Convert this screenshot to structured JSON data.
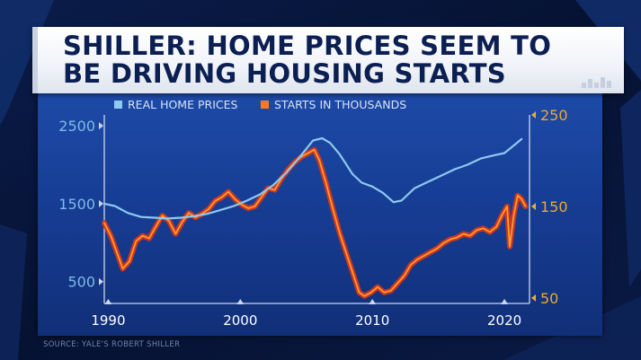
{
  "title": {
    "line1": "SHILLER: HOME PRICES SEEM TO",
    "line2": "BE DRIVING HOUSING STARTS"
  },
  "source": "SOURCE: YALE'S ROBERT SHILLER",
  "colors": {
    "background": "#07153a",
    "panel": "#1a4396",
    "title_text": "#0c1f52",
    "prices_line": "#8ec9f0",
    "starts_line": "#ff9a2e",
    "starts_shadow": "#d4371a",
    "left_axis_text": "#7dbbe6",
    "right_axis_text": "#f0a830",
    "bottom_axis_text": "#ffffff"
  },
  "chart_data": {
    "type": "line",
    "legend": {
      "placement": "top-center",
      "entries": [
        "REAL HOME PRICES",
        "STARTS IN THOUSANDS"
      ]
    },
    "x_axis": {
      "ticks": [
        1990,
        2000,
        2010,
        2020
      ],
      "range": [
        1989.7,
        2021.9
      ]
    },
    "y_left": {
      "ticks": [
        500,
        1500,
        2500
      ],
      "range": [
        220,
        2640
      ]
    },
    "y_right": {
      "ticks": [
        50,
        150,
        250
      ],
      "range": [
        44,
        250
      ]
    },
    "series": [
      {
        "name": "REAL HOME PRICES",
        "axis": "left",
        "points": [
          [
            1989.7,
            1500
          ],
          [
            1990.5,
            1470
          ],
          [
            1991.5,
            1380
          ],
          [
            1992.5,
            1330
          ],
          [
            1993.5,
            1320
          ],
          [
            1994.5,
            1310
          ],
          [
            1995.5,
            1320
          ],
          [
            1996.5,
            1340
          ],
          [
            1997.5,
            1370
          ],
          [
            1998.5,
            1420
          ],
          [
            1999.5,
            1470
          ],
          [
            2000.5,
            1540
          ],
          [
            2001.5,
            1620
          ],
          [
            2002.5,
            1740
          ],
          [
            2003.5,
            1900
          ],
          [
            2004.5,
            2100
          ],
          [
            2005.5,
            2310
          ],
          [
            2006.2,
            2340
          ],
          [
            2006.8,
            2280
          ],
          [
            2007.5,
            2140
          ],
          [
            2008.5,
            1880
          ],
          [
            2009.2,
            1770
          ],
          [
            2010.0,
            1720
          ],
          [
            2010.8,
            1640
          ],
          [
            2011.6,
            1520
          ],
          [
            2012.2,
            1540
          ],
          [
            2013.2,
            1700
          ],
          [
            2014.2,
            1780
          ],
          [
            2015.2,
            1860
          ],
          [
            2016.2,
            1940
          ],
          [
            2017.2,
            2000
          ],
          [
            2018.2,
            2080
          ],
          [
            2019.2,
            2120
          ],
          [
            2020.0,
            2150
          ],
          [
            2020.8,
            2260
          ],
          [
            2021.3,
            2330
          ]
        ]
      },
      {
        "name": "STARTS IN THOUSANDS",
        "axis": "right",
        "points": [
          [
            1989.7,
            132
          ],
          [
            1990.2,
            118
          ],
          [
            1990.7,
            98
          ],
          [
            1991.1,
            82
          ],
          [
            1991.6,
            90
          ],
          [
            1992.1,
            112
          ],
          [
            1992.6,
            118
          ],
          [
            1993.1,
            115
          ],
          [
            1993.6,
            128
          ],
          [
            1994.1,
            140
          ],
          [
            1994.6,
            134
          ],
          [
            1995.1,
            120
          ],
          [
            1995.6,
            133
          ],
          [
            1996.1,
            143
          ],
          [
            1996.6,
            138
          ],
          [
            1997.1,
            142
          ],
          [
            1997.6,
            147
          ],
          [
            1998.1,
            156
          ],
          [
            1998.6,
            160
          ],
          [
            1999.1,
            166
          ],
          [
            1999.6,
            158
          ],
          [
            2000.1,
            152
          ],
          [
            2000.6,
            148
          ],
          [
            2001.1,
            150
          ],
          [
            2001.6,
            160
          ],
          [
            2002.1,
            170
          ],
          [
            2002.6,
            168
          ],
          [
            2003.1,
            180
          ],
          [
            2003.6,
            190
          ],
          [
            2004.1,
            198
          ],
          [
            2004.6,
            204
          ],
          [
            2005.1,
            208
          ],
          [
            2005.6,
            212
          ],
          [
            2006.0,
            200
          ],
          [
            2006.5,
            175
          ],
          [
            2007.0,
            148
          ],
          [
            2007.5,
            122
          ],
          [
            2008.0,
            100
          ],
          [
            2008.5,
            78
          ],
          [
            2009.0,
            56
          ],
          [
            2009.4,
            52
          ],
          [
            2009.9,
            56
          ],
          [
            2010.4,
            62
          ],
          [
            2010.9,
            56
          ],
          [
            2011.4,
            58
          ],
          [
            2011.9,
            66
          ],
          [
            2012.4,
            74
          ],
          [
            2012.9,
            86
          ],
          [
            2013.4,
            92
          ],
          [
            2013.9,
            96
          ],
          [
            2014.4,
            100
          ],
          [
            2014.9,
            104
          ],
          [
            2015.4,
            110
          ],
          [
            2015.9,
            114
          ],
          [
            2016.4,
            116
          ],
          [
            2016.9,
            120
          ],
          [
            2017.4,
            118
          ],
          [
            2017.9,
            124
          ],
          [
            2018.4,
            126
          ],
          [
            2018.9,
            122
          ],
          [
            2019.4,
            128
          ],
          [
            2019.8,
            140
          ],
          [
            2020.2,
            150
          ],
          [
            2020.4,
            106
          ],
          [
            2020.7,
            140
          ],
          [
            2021.0,
            162
          ],
          [
            2021.3,
            158
          ],
          [
            2021.6,
            150
          ]
        ]
      }
    ]
  }
}
